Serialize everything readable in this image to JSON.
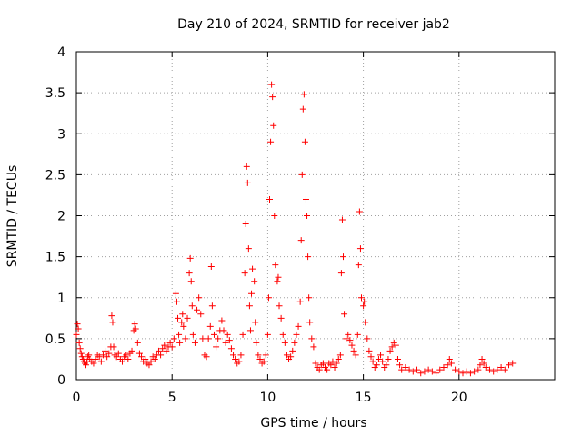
{
  "chart_data": {
    "type": "scatter",
    "title": "Day 210 of 2024, SRMTID for receiver jab2",
    "xlabel": "GPS time / hours",
    "ylabel": "SRMTID / TECUs",
    "xlim": [
      0,
      25
    ],
    "ylim": [
      0,
      4
    ],
    "x_ticks": [
      0,
      5,
      10,
      15,
      20
    ],
    "x_tick_labels": [
      "0",
      "5",
      "10",
      "15",
      "20"
    ],
    "y_ticks": [
      0,
      0.5,
      1,
      1.5,
      2,
      2.5,
      3,
      3.5,
      4
    ],
    "y_tick_labels": [
      "0",
      "0.5",
      "1",
      "1.5",
      "2",
      "2.5",
      "3",
      "3.5",
      "4"
    ],
    "grid": true,
    "marker": "+",
    "color": "#ff0000",
    "series": [
      {
        "name": "SRMTID",
        "points": [
          [
            0.0,
            0.55
          ],
          [
            0.05,
            0.68
          ],
          [
            0.1,
            0.62
          ],
          [
            0.15,
            0.45
          ],
          [
            0.2,
            0.38
          ],
          [
            0.25,
            0.32
          ],
          [
            0.3,
            0.28
          ],
          [
            0.35,
            0.25
          ],
          [
            0.4,
            0.22
          ],
          [
            0.45,
            0.2
          ],
          [
            0.5,
            0.18
          ],
          [
            0.55,
            0.22
          ],
          [
            0.6,
            0.28
          ],
          [
            0.65,
            0.3
          ],
          [
            0.7,
            0.25
          ],
          [
            0.8,
            0.22
          ],
          [
            0.9,
            0.2
          ],
          [
            1.0,
            0.25
          ],
          [
            1.1,
            0.3
          ],
          [
            1.2,
            0.28
          ],
          [
            1.3,
            0.22
          ],
          [
            1.4,
            0.3
          ],
          [
            1.5,
            0.35
          ],
          [
            1.6,
            0.28
          ],
          [
            1.7,
            0.32
          ],
          [
            1.8,
            0.4
          ],
          [
            1.85,
            0.78
          ],
          [
            1.9,
            0.7
          ],
          [
            1.95,
            0.4
          ],
          [
            2.0,
            0.3
          ],
          [
            2.1,
            0.28
          ],
          [
            2.2,
            0.32
          ],
          [
            2.3,
            0.25
          ],
          [
            2.4,
            0.22
          ],
          [
            2.5,
            0.28
          ],
          [
            2.6,
            0.3
          ],
          [
            2.7,
            0.25
          ],
          [
            2.8,
            0.32
          ],
          [
            2.9,
            0.35
          ],
          [
            3.0,
            0.6
          ],
          [
            3.05,
            0.68
          ],
          [
            3.1,
            0.62
          ],
          [
            3.2,
            0.45
          ],
          [
            3.3,
            0.32
          ],
          [
            3.4,
            0.28
          ],
          [
            3.5,
            0.22
          ],
          [
            3.6,
            0.25
          ],
          [
            3.7,
            0.2
          ],
          [
            3.8,
            0.18
          ],
          [
            3.9,
            0.22
          ],
          [
            4.0,
            0.28
          ],
          [
            4.1,
            0.25
          ],
          [
            4.2,
            0.3
          ],
          [
            4.3,
            0.35
          ],
          [
            4.4,
            0.3
          ],
          [
            4.5,
            0.38
          ],
          [
            4.6,
            0.42
          ],
          [
            4.7,
            0.35
          ],
          [
            4.8,
            0.4
          ],
          [
            4.9,
            0.45
          ],
          [
            5.0,
            0.4
          ],
          [
            5.1,
            0.5
          ],
          [
            5.2,
            1.05
          ],
          [
            5.25,
            0.95
          ],
          [
            5.3,
            0.75
          ],
          [
            5.35,
            0.55
          ],
          [
            5.4,
            0.45
          ],
          [
            5.5,
            0.7
          ],
          [
            5.55,
            0.8
          ],
          [
            5.6,
            0.65
          ],
          [
            5.7,
            0.5
          ],
          [
            5.8,
            0.75
          ],
          [
            5.9,
            1.3
          ],
          [
            5.95,
            1.48
          ],
          [
            6.0,
            1.2
          ],
          [
            6.05,
            0.9
          ],
          [
            6.1,
            0.55
          ],
          [
            6.2,
            0.45
          ],
          [
            6.3,
            0.85
          ],
          [
            6.4,
            1.0
          ],
          [
            6.5,
            0.8
          ],
          [
            6.6,
            0.5
          ],
          [
            6.7,
            0.3
          ],
          [
            6.8,
            0.28
          ],
          [
            6.9,
            0.5
          ],
          [
            7.0,
            0.65
          ],
          [
            7.05,
            1.38
          ],
          [
            7.1,
            0.9
          ],
          [
            7.2,
            0.55
          ],
          [
            7.3,
            0.4
          ],
          [
            7.4,
            0.5
          ],
          [
            7.5,
            0.6
          ],
          [
            7.6,
            0.72
          ],
          [
            7.7,
            0.6
          ],
          [
            7.8,
            0.45
          ],
          [
            7.9,
            0.55
          ],
          [
            8.0,
            0.48
          ],
          [
            8.1,
            0.38
          ],
          [
            8.2,
            0.3
          ],
          [
            8.3,
            0.25
          ],
          [
            8.4,
            0.2
          ],
          [
            8.5,
            0.22
          ],
          [
            8.6,
            0.3
          ],
          [
            8.7,
            0.55
          ],
          [
            8.8,
            1.3
          ],
          [
            8.85,
            1.9
          ],
          [
            8.9,
            2.6
          ],
          [
            8.95,
            2.4
          ],
          [
            9.0,
            1.6
          ],
          [
            9.05,
            0.9
          ],
          [
            9.1,
            0.6
          ],
          [
            9.15,
            1.05
          ],
          [
            9.2,
            1.35
          ],
          [
            9.3,
            1.2
          ],
          [
            9.35,
            0.7
          ],
          [
            9.4,
            0.45
          ],
          [
            9.5,
            0.3
          ],
          [
            9.6,
            0.25
          ],
          [
            9.7,
            0.2
          ],
          [
            9.8,
            0.22
          ],
          [
            9.9,
            0.3
          ],
          [
            10.0,
            0.55
          ],
          [
            10.05,
            1.0
          ],
          [
            10.1,
            2.2
          ],
          [
            10.15,
            2.9
          ],
          [
            10.2,
            3.6
          ],
          [
            10.25,
            3.45
          ],
          [
            10.3,
            3.1
          ],
          [
            10.35,
            2.0
          ],
          [
            10.4,
            1.4
          ],
          [
            10.5,
            1.2
          ],
          [
            10.55,
            1.25
          ],
          [
            10.6,
            0.9
          ],
          [
            10.7,
            0.75
          ],
          [
            10.8,
            0.55
          ],
          [
            10.9,
            0.45
          ],
          [
            11.0,
            0.3
          ],
          [
            11.1,
            0.25
          ],
          [
            11.2,
            0.28
          ],
          [
            11.3,
            0.35
          ],
          [
            11.4,
            0.45
          ],
          [
            11.5,
            0.55
          ],
          [
            11.6,
            0.65
          ],
          [
            11.7,
            0.95
          ],
          [
            11.75,
            1.7
          ],
          [
            11.8,
            2.5
          ],
          [
            11.85,
            3.3
          ],
          [
            11.9,
            3.48
          ],
          [
            11.95,
            2.9
          ],
          [
            12.0,
            2.2
          ],
          [
            12.05,
            2.0
          ],
          [
            12.1,
            1.5
          ],
          [
            12.15,
            1.0
          ],
          [
            12.2,
            0.7
          ],
          [
            12.3,
            0.5
          ],
          [
            12.4,
            0.4
          ],
          [
            12.5,
            0.2
          ],
          [
            12.6,
            0.15
          ],
          [
            12.7,
            0.12
          ],
          [
            12.8,
            0.18
          ],
          [
            12.9,
            0.2
          ],
          [
            13.0,
            0.15
          ],
          [
            13.1,
            0.12
          ],
          [
            13.2,
            0.2
          ],
          [
            13.3,
            0.18
          ],
          [
            13.4,
            0.22
          ],
          [
            13.5,
            0.15
          ],
          [
            13.6,
            0.2
          ],
          [
            13.7,
            0.25
          ],
          [
            13.8,
            0.3
          ],
          [
            13.85,
            1.3
          ],
          [
            13.9,
            1.95
          ],
          [
            13.95,
            1.5
          ],
          [
            14.0,
            0.8
          ],
          [
            14.1,
            0.5
          ],
          [
            14.2,
            0.55
          ],
          [
            14.3,
            0.48
          ],
          [
            14.4,
            0.42
          ],
          [
            14.5,
            0.35
          ],
          [
            14.6,
            0.3
          ],
          [
            14.7,
            0.55
          ],
          [
            14.75,
            1.4
          ],
          [
            14.8,
            2.05
          ],
          [
            14.85,
            1.6
          ],
          [
            14.9,
            1.0
          ],
          [
            15.0,
            0.9
          ],
          [
            15.05,
            0.95
          ],
          [
            15.1,
            0.7
          ],
          [
            15.2,
            0.5
          ],
          [
            15.3,
            0.35
          ],
          [
            15.4,
            0.28
          ],
          [
            15.5,
            0.22
          ],
          [
            15.6,
            0.15
          ],
          [
            15.7,
            0.18
          ],
          [
            15.8,
            0.25
          ],
          [
            15.9,
            0.3
          ],
          [
            16.0,
            0.22
          ],
          [
            16.1,
            0.15
          ],
          [
            16.2,
            0.18
          ],
          [
            16.3,
            0.25
          ],
          [
            16.4,
            0.35
          ],
          [
            16.5,
            0.4
          ],
          [
            16.6,
            0.45
          ],
          [
            16.7,
            0.42
          ],
          [
            16.8,
            0.25
          ],
          [
            16.9,
            0.18
          ],
          [
            17.0,
            0.12
          ],
          [
            17.2,
            0.15
          ],
          [
            17.4,
            0.12
          ],
          [
            17.6,
            0.1
          ],
          [
            17.8,
            0.12
          ],
          [
            18.0,
            0.08
          ],
          [
            18.2,
            0.1
          ],
          [
            18.4,
            0.12
          ],
          [
            18.6,
            0.1
          ],
          [
            18.8,
            0.08
          ],
          [
            19.0,
            0.12
          ],
          [
            19.2,
            0.15
          ],
          [
            19.4,
            0.18
          ],
          [
            19.5,
            0.25
          ],
          [
            19.6,
            0.2
          ],
          [
            19.8,
            0.12
          ],
          [
            20.0,
            0.1
          ],
          [
            20.2,
            0.08
          ],
          [
            20.4,
            0.1
          ],
          [
            20.6,
            0.08
          ],
          [
            20.8,
            0.1
          ],
          [
            21.0,
            0.12
          ],
          [
            21.1,
            0.18
          ],
          [
            21.2,
            0.25
          ],
          [
            21.3,
            0.2
          ],
          [
            21.4,
            0.15
          ],
          [
            21.6,
            0.12
          ],
          [
            21.8,
            0.1
          ],
          [
            22.0,
            0.12
          ],
          [
            22.2,
            0.15
          ],
          [
            22.4,
            0.12
          ],
          [
            22.6,
            0.18
          ],
          [
            22.8,
            0.2
          ]
        ]
      }
    ]
  }
}
